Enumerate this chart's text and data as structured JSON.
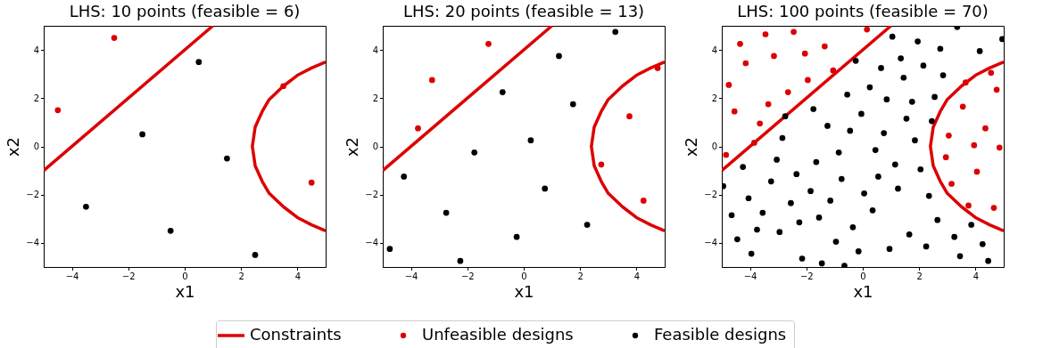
{
  "chart_data": [
    {
      "type": "scatter",
      "title": "LHS: 10 points (feasible = 6)",
      "xlabel": "x1",
      "ylabel": "x2",
      "xlim": [
        -5,
        5
      ],
      "ylim": [
        -5,
        5
      ],
      "xticks": [
        -4,
        -2,
        0,
        2,
        4
      ],
      "yticks": [
        -4,
        -2,
        0,
        2,
        4
      ],
      "grid": false,
      "legend": "bottom",
      "series": [
        {
          "name": "Constraints",
          "type": "line",
          "color": "#dd0000",
          "x": [
            -5,
            1
          ],
          "values": [
            -1,
            5
          ]
        },
        {
          "type": "line",
          "color": "#dd0000",
          "x": [
            5,
            4.5,
            4,
            3.5,
            3,
            2.75,
            2.5,
            2.4,
            2.5,
            2.75,
            3,
            3.5,
            4,
            4.5,
            5
          ],
          "values": [
            3.5,
            3.25,
            2.95,
            2.5,
            1.95,
            1.45,
            0.8,
            0,
            -0.8,
            -1.45,
            -1.95,
            -2.5,
            -2.95,
            -3.25,
            -3.5
          ]
        },
        {
          "name": "Unfeasible designs",
          "marker": "circle",
          "color": "#dd0000",
          "x": [
            -4.5,
            -2.5,
            3.5,
            4.5
          ],
          "values": [
            1.5,
            4.5,
            2.5,
            -1.5
          ]
        },
        {
          "name": "Feasible designs",
          "marker": "circle",
          "color": "#000000",
          "x": [
            0.5,
            -1.5,
            1.5,
            -3.5,
            -0.5,
            2.5
          ],
          "values": [
            3.5,
            0.5,
            -0.5,
            -2.5,
            -3.5,
            -4.5
          ]
        }
      ]
    },
    {
      "type": "scatter",
      "title": "LHS: 20 points (feasible = 13)",
      "xlabel": "x1",
      "ylabel": "x2",
      "xlim": [
        -5,
        5
      ],
      "ylim": [
        -5,
        5
      ],
      "xticks": [
        -4,
        -2,
        0,
        2,
        4
      ],
      "yticks": [
        -4,
        -2,
        0,
        2,
        4
      ],
      "grid": false,
      "legend": "bottom",
      "series": [
        {
          "name": "Constraints",
          "type": "line",
          "color": "#dd0000",
          "x": [
            -5,
            1
          ],
          "values": [
            -1,
            5
          ]
        },
        {
          "type": "line",
          "color": "#dd0000",
          "x": [
            5,
            4.5,
            4,
            3.5,
            3,
            2.75,
            2.5,
            2.4,
            2.5,
            2.75,
            3,
            3.5,
            4,
            4.5,
            5
          ],
          "values": [
            3.5,
            3.25,
            2.95,
            2.5,
            1.95,
            1.45,
            0.8,
            0,
            -0.8,
            -1.45,
            -1.95,
            -2.5,
            -2.95,
            -3.25,
            -3.5
          ]
        },
        {
          "name": "Unfeasible designs",
          "marker": "circle",
          "color": "#dd0000",
          "x": [
            -1.25,
            -3.25,
            -3.75,
            4.75,
            3.75,
            2.75,
            4.25
          ],
          "values": [
            4.25,
            2.75,
            0.75,
            3.25,
            1.25,
            -0.75,
            -2.25
          ]
        },
        {
          "name": "Feasible designs",
          "marker": "circle",
          "color": "#000000",
          "x": [
            3.25,
            1.25,
            -0.75,
            1.75,
            0.25,
            -1.75,
            -4.25,
            0.75,
            -2.75,
            2.25,
            -0.25,
            -4.75,
            -2.25
          ],
          "values": [
            4.75,
            3.75,
            2.25,
            1.75,
            0.25,
            -0.25,
            -1.25,
            -1.75,
            -2.75,
            -3.25,
            -3.75,
            -4.25,
            -4.75
          ]
        }
      ]
    },
    {
      "type": "scatter",
      "title": "LHS: 100 points (feasible = 70)",
      "xlabel": "x1",
      "ylabel": "x2",
      "xlim": [
        -5,
        5
      ],
      "ylim": [
        -5,
        5
      ],
      "xticks": [
        -4,
        -2,
        0,
        2,
        4
      ],
      "yticks": [
        -4,
        -2,
        0,
        2,
        4
      ],
      "grid": false,
      "legend": "bottom",
      "series": [
        {
          "name": "Constraints",
          "type": "line",
          "color": "#dd0000",
          "x": [
            -5,
            1
          ],
          "values": [
            -1,
            5
          ]
        },
        {
          "type": "line",
          "color": "#dd0000",
          "x": [
            5,
            4.5,
            4,
            3.5,
            3,
            2.75,
            2.5,
            2.4,
            2.5,
            2.75,
            3,
            3.5,
            4,
            4.5,
            5
          ],
          "values": [
            3.5,
            3.25,
            2.95,
            2.5,
            1.95,
            1.45,
            0.8,
            0,
            -0.8,
            -1.45,
            -1.95,
            -2.5,
            -2.95,
            -3.25,
            -3.5
          ]
        },
        {
          "name": "Unfeasible designs",
          "marker": "circle",
          "color": "#dd0000",
          "x": [
            -4.85,
            -4.75,
            -4.55,
            -4.35,
            -4.15,
            -3.85,
            -3.65,
            -3.45,
            -3.35,
            -3.15,
            -2.65,
            -2.45,
            -2.05,
            -1.95,
            -1.35,
            -1.05,
            0.15,
            4.55,
            3.65,
            4.75,
            3.55,
            4.35,
            3.05,
            3.95,
            4.85,
            2.95,
            4.05,
            3.15,
            3.75,
            4.65
          ],
          "values": [
            -0.35,
            2.55,
            1.45,
            4.25,
            3.45,
            0.15,
            0.95,
            4.65,
            1.75,
            3.75,
            2.25,
            4.75,
            3.85,
            2.75,
            4.15,
            3.15,
            4.85,
            3.05,
            2.65,
            2.35,
            1.65,
            0.75,
            0.45,
            0.05,
            -0.05,
            -0.45,
            -1.05,
            -1.55,
            -2.45,
            -2.55
          ]
        },
        {
          "name": "Feasible designs",
          "marker": "circle",
          "color": "#000000",
          "x": [
            -4.95,
            -4.65,
            -4.45,
            -4.25,
            -4.05,
            -3.95,
            -3.75,
            -3.55,
            -3.25,
            -3.05,
            -2.95,
            -2.85,
            -2.75,
            -2.55,
            -2.35,
            -2.25,
            -2.15,
            -1.85,
            -1.75,
            -1.65,
            -1.55,
            -1.45,
            -1.25,
            -1.15,
            -0.95,
            -0.85,
            -0.75,
            3.35,
            1.05,
            1.95,
            4.95,
            2.75,
            4.15,
            -0.25,
            1.35,
            0.65,
            2.15,
            1.45,
            2.85,
            0.25,
            -0.55,
            0.85,
            1.75,
            2.55,
            -0.05,
            1.55,
            2.45,
            -0.45,
            0.75,
            1.85,
            0.45,
            1.15,
            2.05,
            0.55,
            1.25,
            0.05,
            2.35,
            0.35,
            2.65,
            3.85,
            -0.35,
            1.65,
            3.25,
            4.25,
            -0.15,
            0.95,
            2.25,
            3.45,
            4.45,
            -0.65
          ],
          "values": [
            -1.65,
            -2.85,
            -3.85,
            -0.85,
            -2.15,
            -4.45,
            -3.45,
            -2.75,
            -1.45,
            -0.55,
            -3.55,
            0.35,
            1.25,
            -2.35,
            -1.15,
            -3.15,
            -4.65,
            -1.85,
            1.55,
            -0.65,
            -2.95,
            -4.85,
            0.85,
            -2.25,
            -3.95,
            -0.25,
            -1.35,
            4.95,
            4.55,
            4.35,
            4.45,
            4.05,
            3.95,
            3.55,
            3.65,
            3.25,
            3.35,
            2.85,
            2.95,
            2.45,
            2.15,
            1.95,
            1.85,
            2.05,
            1.35,
            1.15,
            1.05,
            0.65,
            0.55,
            0.25,
            -0.15,
            -0.75,
            -0.95,
            -1.25,
            -1.75,
            -1.95,
            -2.05,
            -2.65,
            -3.05,
            -3.25,
            -3.35,
            -3.65,
            -3.75,
            -4.05,
            -4.35,
            -4.25,
            -4.15,
            -4.55,
            -4.75,
            -4.95
          ]
        }
      ]
    }
  ]
}
